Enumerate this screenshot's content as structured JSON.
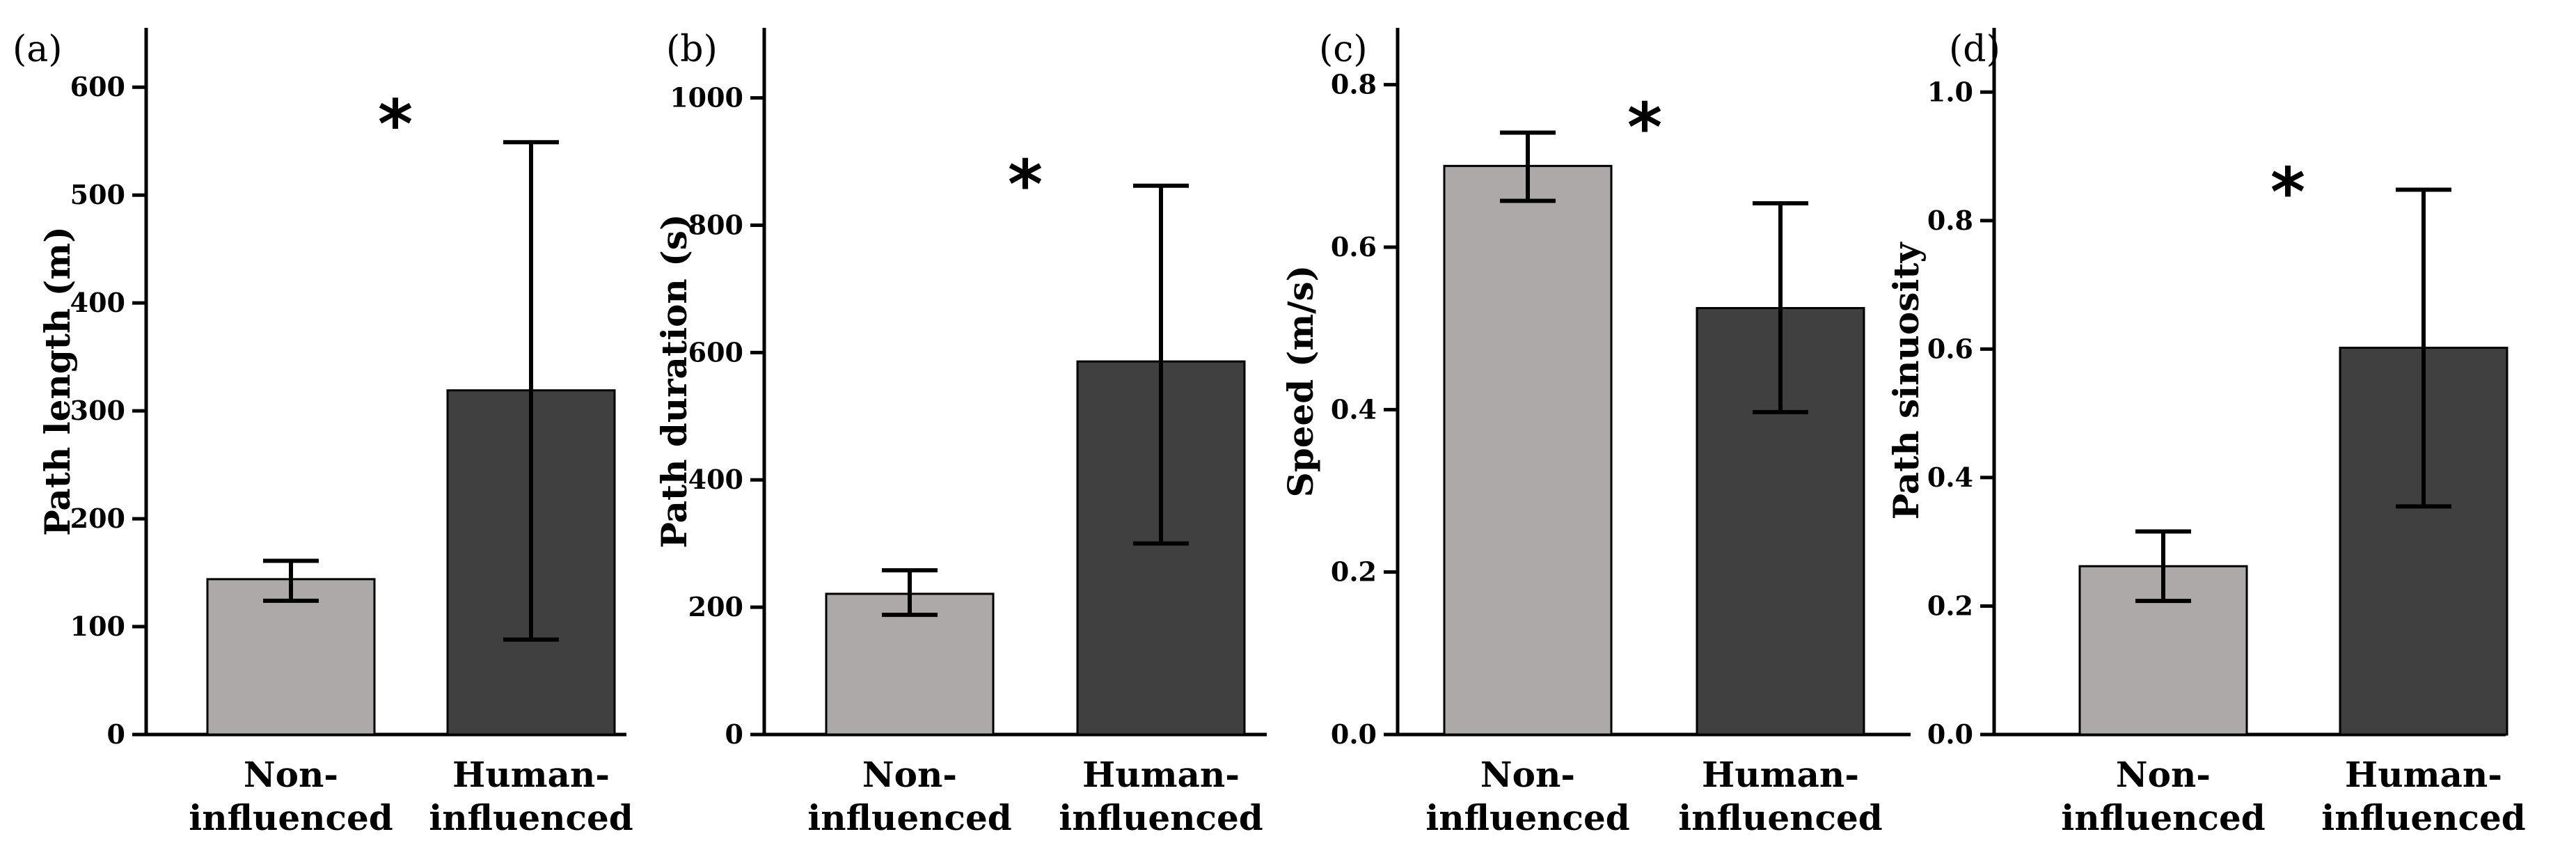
{
  "colors": {
    "non_influenced": "#ada9a8",
    "human_influenced": "#404040"
  },
  "chart_data": [
    {
      "type": "bar",
      "panel": "(a)",
      "ylabel": "Path length (m)",
      "categories": [
        "Non-|influenced",
        "Human-|influenced"
      ],
      "values": [
        144,
        319
      ],
      "errors_low": [
        124,
        88
      ],
      "errors_high": [
        161,
        549
      ],
      "ylim": [
        0,
        655
      ],
      "yticks": [
        0,
        100,
        200,
        300,
        400,
        500,
        600
      ],
      "tick_labels": [
        "0",
        "100",
        "200",
        "300",
        "400",
        "500",
        "600"
      ],
      "significance": "*",
      "star_y": 575
    },
    {
      "type": "bar",
      "panel": "(b)",
      "ylabel": "Path duration (s)",
      "categories": [
        "Non-|influenced",
        "Human-|influenced"
      ],
      "values": [
        221,
        586
      ],
      "errors_low": [
        188,
        300
      ],
      "errors_high": [
        258,
        862
      ],
      "ylim": [
        0,
        1110
      ],
      "yticks": [
        0,
        200,
        400,
        600,
        800,
        1000
      ],
      "tick_labels": [
        "0",
        "200",
        "400",
        "600",
        "800",
        "1000"
      ],
      "significance": "*",
      "star_y": 880
    },
    {
      "type": "bar",
      "panel": "(c)",
      "ylabel": "Speed (m/s)",
      "categories": [
        "Non-|influenced",
        "Human-|influenced"
      ],
      "values": [
        0.7,
        0.525
      ],
      "errors_low": [
        0.657,
        0.397
      ],
      "errors_high": [
        0.741,
        0.654
      ],
      "ylim": [
        0,
        0.87
      ],
      "yticks": [
        0.0,
        0.2,
        0.4,
        0.6,
        0.8
      ],
      "tick_labels": [
        "0.0",
        "0.2",
        "0.4",
        "0.6",
        "0.8"
      ],
      "significance": "*",
      "star_y": 0.76
    },
    {
      "type": "bar",
      "panel": "(d)",
      "ylabel": "Path sinuosity",
      "categories": [
        "Non-|influenced",
        "Human-|influenced"
      ],
      "values": [
        0.262,
        0.602
      ],
      "errors_low": [
        0.208,
        0.355
      ],
      "errors_high": [
        0.316,
        0.848
      ],
      "ylim": [
        0,
        1.1
      ],
      "yticks": [
        0.0,
        0.2,
        0.4,
        0.6,
        0.8,
        1.0
      ],
      "tick_labels": [
        "0.0",
        "0.2",
        "0.4",
        "0.6",
        "0.8",
        "1.0"
      ],
      "significance": "*",
      "star_y": 0.86
    }
  ]
}
